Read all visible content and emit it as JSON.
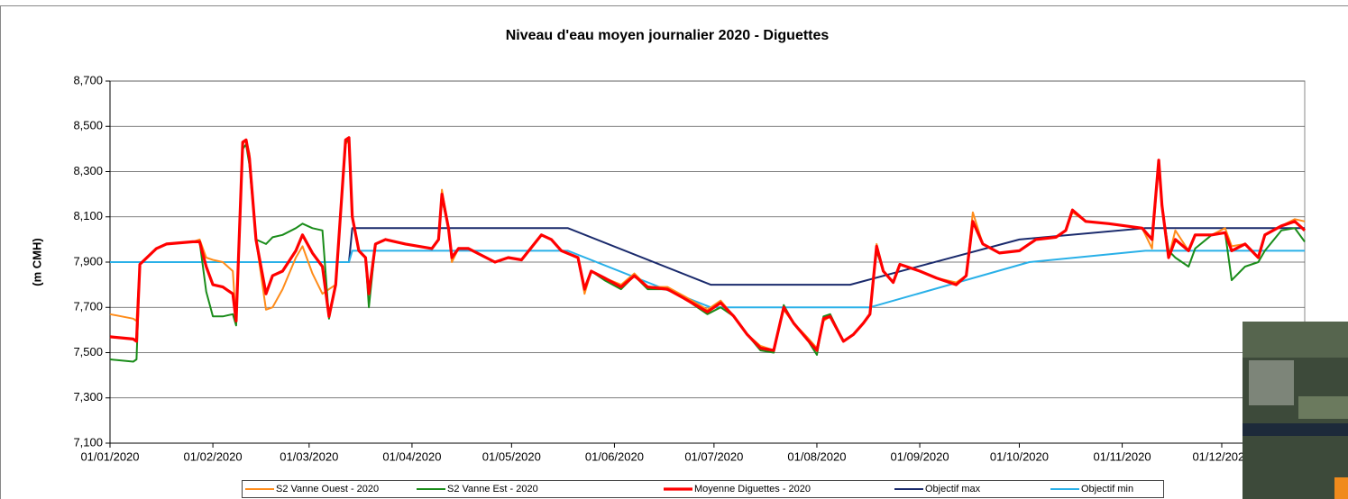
{
  "chart_data": {
    "type": "line",
    "title": "Niveau d'eau moyen journalier 2020 - Diguettes",
    "y_label": "(m CMH)",
    "xlim": [
      "2020-01-01",
      "2020-12-26"
    ],
    "xticks": [
      {
        "value": "2020-01-01",
        "label": "01/01/2020"
      },
      {
        "value": "2020-02-01",
        "label": "01/02/2020"
      },
      {
        "value": "2020-03-01",
        "label": "01/03/2020"
      },
      {
        "value": "2020-04-01",
        "label": "01/04/2020"
      },
      {
        "value": "2020-05-01",
        "label": "01/05/2020"
      },
      {
        "value": "2020-06-01",
        "label": "01/06/2020"
      },
      {
        "value": "2020-07-01",
        "label": "01/07/2020"
      },
      {
        "value": "2020-08-01",
        "label": "01/08/2020"
      },
      {
        "value": "2020-09-01",
        "label": "01/09/2020"
      },
      {
        "value": "2020-10-01",
        "label": "01/10/2020"
      },
      {
        "value": "2020-11-01",
        "label": "01/11/2020"
      },
      {
        "value": "2020-12-01",
        "label": "01/12/2020"
      }
    ],
    "ylim": [
      7.1,
      8.7
    ],
    "yticks": [
      {
        "value": 7.1,
        "label": "7,100"
      },
      {
        "value": 7.3,
        "label": "7,300"
      },
      {
        "value": 7.5,
        "label": "7,500"
      },
      {
        "value": 7.7,
        "label": "7,700"
      },
      {
        "value": 7.9,
        "label": "7,900"
      },
      {
        "value": 8.1,
        "label": "8,100"
      },
      {
        "value": 8.3,
        "label": "8,300"
      },
      {
        "value": 8.5,
        "label": "8,500"
      },
      {
        "value": 8.7,
        "label": "8,700"
      }
    ],
    "grid": true,
    "legend": "bottom",
    "x": [
      "2020-01-01",
      "2020-01-08",
      "2020-01-09",
      "2020-01-10",
      "2020-01-15",
      "2020-01-18",
      "2020-01-26",
      "2020-01-28",
      "2020-01-30",
      "2020-02-01",
      "2020-02-04",
      "2020-02-07",
      "2020-02-08",
      "2020-02-10",
      "2020-02-11",
      "2020-02-12",
      "2020-02-14",
      "2020-02-17",
      "2020-02-19",
      "2020-02-22",
      "2020-02-26",
      "2020-02-28",
      "2020-03-02",
      "2020-03-05",
      "2020-03-07",
      "2020-03-09",
      "2020-03-12",
      "2020-03-13",
      "2020-03-14",
      "2020-03-16",
      "2020-03-18",
      "2020-03-19",
      "2020-03-21",
      "2020-03-24",
      "2020-03-30",
      "2020-04-07",
      "2020-04-09",
      "2020-04-10",
      "2020-04-12",
      "2020-04-13",
      "2020-04-15",
      "2020-04-18",
      "2020-04-26",
      "2020-04-30",
      "2020-05-04",
      "2020-05-10",
      "2020-05-13",
      "2020-05-16",
      "2020-05-21",
      "2020-05-23",
      "2020-05-25",
      "2020-05-29",
      "2020-06-03",
      "2020-06-07",
      "2020-06-11",
      "2020-06-17",
      "2020-06-22",
      "2020-06-29",
      "2020-07-03",
      "2020-07-07",
      "2020-07-11",
      "2020-07-15",
      "2020-07-19",
      "2020-07-22",
      "2020-07-25",
      "2020-07-29",
      "2020-08-01",
      "2020-08-03",
      "2020-08-05",
      "2020-08-09",
      "2020-08-12",
      "2020-08-15",
      "2020-08-17",
      "2020-08-19",
      "2020-08-21",
      "2020-08-24",
      "2020-08-26",
      "2020-09-01",
      "2020-09-06",
      "2020-09-12",
      "2020-09-15",
      "2020-09-17",
      "2020-09-20",
      "2020-09-25",
      "2020-10-01",
      "2020-10-06",
      "2020-10-12",
      "2020-10-15",
      "2020-10-17",
      "2020-10-21",
      "2020-10-28",
      "2020-11-07",
      "2020-11-10",
      "2020-11-12",
      "2020-11-13",
      "2020-11-15",
      "2020-11-17",
      "2020-11-21",
      "2020-11-23",
      "2020-11-28",
      "2020-12-02",
      "2020-12-04",
      "2020-12-08",
      "2020-12-12",
      "2020-12-14",
      "2020-12-19",
      "2020-12-23",
      "2020-12-26"
    ],
    "series": [
      {
        "name": "S2 Vanne Ouest - 2020",
        "color": "#ff8c1a",
        "width": 2,
        "values": [
          7.67,
          7.65,
          7.64,
          7.89,
          7.96,
          7.98,
          7.99,
          8.0,
          7.92,
          7.91,
          7.9,
          7.86,
          7.63,
          8.42,
          8.44,
          8.38,
          8.0,
          7.69,
          7.7,
          7.78,
          7.92,
          7.97,
          7.85,
          7.76,
          7.78,
          7.8,
          8.42,
          8.44,
          8.1,
          7.95,
          7.92,
          7.76,
          7.98,
          8.0,
          7.98,
          7.96,
          8.0,
          8.22,
          8.05,
          7.9,
          7.96,
          7.96,
          7.9,
          7.92,
          7.91,
          8.02,
          8.0,
          7.95,
          7.92,
          7.76,
          7.86,
          7.83,
          7.8,
          7.85,
          7.79,
          7.79,
          7.75,
          7.69,
          7.73,
          7.66,
          7.58,
          7.53,
          7.51,
          7.69,
          7.63,
          7.57,
          7.52,
          7.64,
          7.66,
          7.55,
          7.58,
          7.63,
          7.67,
          7.98,
          7.86,
          7.81,
          7.89,
          7.86,
          7.83,
          7.81,
          7.84,
          8.12,
          7.98,
          7.94,
          7.95,
          8.0,
          8.01,
          8.04,
          8.12,
          8.08,
          8.07,
          8.05,
          7.96,
          8.35,
          8.15,
          7.92,
          8.04,
          7.95,
          8.02,
          8.02,
          8.05,
          7.97,
          7.98,
          7.92,
          8.02,
          8.06,
          8.09,
          8.08
        ]
      },
      {
        "name": "S2 Vanne Est - 2020",
        "color": "#1a8c1a",
        "width": 2,
        "values": [
          7.47,
          7.46,
          7.47,
          7.89,
          7.96,
          7.98,
          7.99,
          7.99,
          7.77,
          7.66,
          7.66,
          7.67,
          7.62,
          8.4,
          8.42,
          8.33,
          8.0,
          7.98,
          8.01,
          8.02,
          8.05,
          8.07,
          8.05,
          8.04,
          7.65,
          7.8,
          8.43,
          8.44,
          8.1,
          7.95,
          7.92,
          7.7,
          7.98,
          8.0,
          7.98,
          7.96,
          8.0,
          8.18,
          8.05,
          7.92,
          7.96,
          7.96,
          7.9,
          7.92,
          7.91,
          8.02,
          8.0,
          7.95,
          7.92,
          7.78,
          7.86,
          7.82,
          7.78,
          7.84,
          7.78,
          7.78,
          7.74,
          7.67,
          7.7,
          7.66,
          7.58,
          7.51,
          7.5,
          7.71,
          7.63,
          7.56,
          7.49,
          7.66,
          7.67,
          7.55,
          7.58,
          7.63,
          7.67,
          7.95,
          7.86,
          7.81,
          7.89,
          7.86,
          7.83,
          7.8,
          7.84,
          8.08,
          7.98,
          7.94,
          7.95,
          8.0,
          8.01,
          8.04,
          8.13,
          8.08,
          8.07,
          8.05,
          8.0,
          8.35,
          8.15,
          7.95,
          7.92,
          7.88,
          7.96,
          8.02,
          8.03,
          7.82,
          7.88,
          7.9,
          7.95,
          8.04,
          8.05,
          7.99
        ]
      },
      {
        "name": "Moyenne Diguettes - 2020",
        "color": "#ff0000",
        "width": 3.2,
        "values": [
          7.57,
          7.56,
          7.55,
          7.89,
          7.96,
          7.98,
          7.99,
          7.99,
          7.88,
          7.8,
          7.79,
          7.76,
          7.64,
          8.43,
          8.44,
          8.36,
          8.0,
          7.76,
          7.84,
          7.86,
          7.95,
          8.02,
          7.94,
          7.88,
          7.66,
          7.8,
          8.44,
          8.45,
          8.1,
          7.95,
          7.92,
          7.76,
          7.98,
          8.0,
          7.98,
          7.96,
          8.0,
          8.2,
          8.05,
          7.92,
          7.96,
          7.96,
          7.9,
          7.92,
          7.91,
          8.02,
          8.0,
          7.95,
          7.92,
          7.78,
          7.86,
          7.83,
          7.79,
          7.84,
          7.79,
          7.78,
          7.74,
          7.68,
          7.72,
          7.66,
          7.58,
          7.52,
          7.51,
          7.7,
          7.63,
          7.56,
          7.51,
          7.65,
          7.66,
          7.55,
          7.58,
          7.63,
          7.67,
          7.97,
          7.86,
          7.81,
          7.89,
          7.86,
          7.83,
          7.8,
          7.84,
          8.08,
          7.98,
          7.94,
          7.95,
          8.0,
          8.01,
          8.04,
          8.13,
          8.08,
          8.07,
          8.05,
          8.0,
          8.35,
          8.15,
          7.92,
          8.0,
          7.95,
          8.02,
          8.02,
          8.03,
          7.95,
          7.98,
          7.92,
          8.02,
          8.06,
          8.08,
          8.04
        ]
      },
      {
        "name": "Objectif max",
        "color": "#1a2a6c",
        "width": 2,
        "x": [
          "2020-01-01",
          "2020-03-13",
          "2020-03-14",
          "2020-05-18",
          "2020-06-30",
          "2020-08-11",
          "2020-10-01",
          "2020-11-08",
          "2020-12-26"
        ],
        "values": [
          7.9,
          7.9,
          8.05,
          8.05,
          7.8,
          7.8,
          8.0,
          8.05,
          8.05
        ]
      },
      {
        "name": "Objectif min",
        "color": "#29b0e8",
        "width": 2,
        "x": [
          "2020-01-01",
          "2020-03-13",
          "2020-03-14",
          "2020-05-18",
          "2020-06-30",
          "2020-08-17",
          "2020-10-04",
          "2020-11-08",
          "2020-12-26"
        ],
        "values": [
          7.9,
          7.9,
          7.95,
          7.95,
          7.7,
          7.7,
          7.9,
          7.95,
          7.95
        ]
      }
    ]
  }
}
